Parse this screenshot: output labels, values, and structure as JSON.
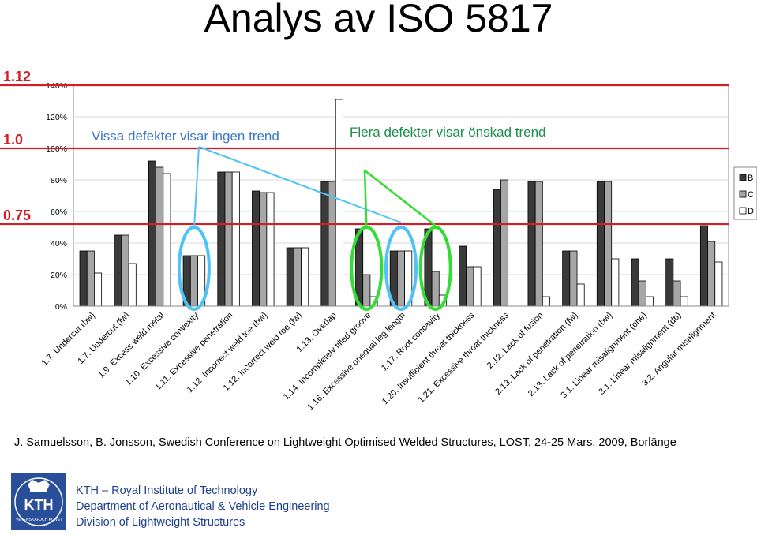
{
  "slide": {
    "title": "Analys av ISO 5817",
    "citation": "J. Samuelsson, B. Jonsson, Swedish Conference on Lightweight Optimised Welded Structures, LOST, 24-25 Mars, 2009, Borlänge",
    "footer": {
      "line1": "KTH – Royal Institute of Technology",
      "line2": "Department of Aeronautical & Vehicle Engineering",
      "line3": "Division of Lightweight Structures"
    },
    "logo": {
      "text": "KTH",
      "motto_left": "VETENSKAP",
      "motto_right": "OCH KONST"
    },
    "colors": {
      "red": "#d21f26",
      "blue": "#4fc3f7",
      "green": "#33dd33",
      "text_blue": "#3b78c9",
      "text_green": "#1a8f4a",
      "logo_blue": "#2a4f9a"
    }
  },
  "chart_data": {
    "type": "bar",
    "ylim": [
      0,
      140
    ],
    "yticks": [
      "0%",
      "20%",
      "40%",
      "60%",
      "80%",
      "100%",
      "120%",
      "140%"
    ],
    "categories": [
      "1.7. Undercut (bw)",
      "1.7. Undercut (fw)",
      "1.9. Excess weld metal",
      "1.10. Excessive convexity",
      "1.11. Excessive penetration",
      "1.12. Incorrect weld toe (bw)",
      "1.12. Incorrect weld toe (fw)",
      "1.13. Overlap",
      "1.14. Incompletely filled groove",
      "1.16. Excessive unequal leg length",
      "1.17. Root concavity",
      "1.20. Insufficient throat thickness",
      "1.21. Excessive throat thickness",
      "2.12. Lack of fusion",
      "2.13. Lack of penetration (fw)",
      "2.13. Lack of penetration (bw)",
      "3.1. Linear misalignment (one)",
      "3.1. Linear misalignment (db)",
      "3.2. Angular misalignment"
    ],
    "series": [
      {
        "name": "B",
        "color": "#3a3a3a",
        "values": [
          35,
          45,
          92,
          32,
          85,
          73,
          37,
          79,
          49,
          35,
          49,
          38,
          74,
          79,
          35,
          79,
          30,
          30,
          51
        ]
      },
      {
        "name": "C",
        "color": "#a6a6a6",
        "values": [
          35,
          45,
          88,
          32,
          85,
          72,
          37,
          79,
          20,
          35,
          22,
          25,
          80,
          79,
          35,
          79,
          16,
          16,
          41
        ]
      },
      {
        "name": "D",
        "color": "#ffffff",
        "values": [
          21,
          27,
          84,
          32,
          85,
          72,
          37,
          131,
          6,
          35,
          7,
          25,
          null,
          6,
          14,
          30,
          6,
          6,
          28
        ]
      }
    ],
    "reference_lines": [
      {
        "label": "1.12",
        "value": 140
      },
      {
        "label": "1.0",
        "value": 100
      },
      {
        "label": "0.75",
        "value": 52
      }
    ],
    "annotations": [
      {
        "text": "Vissa defekter visar ingen trend"
      },
      {
        "text": "Flera defekter visar önskad trend"
      }
    ],
    "legend_position": "right"
  }
}
